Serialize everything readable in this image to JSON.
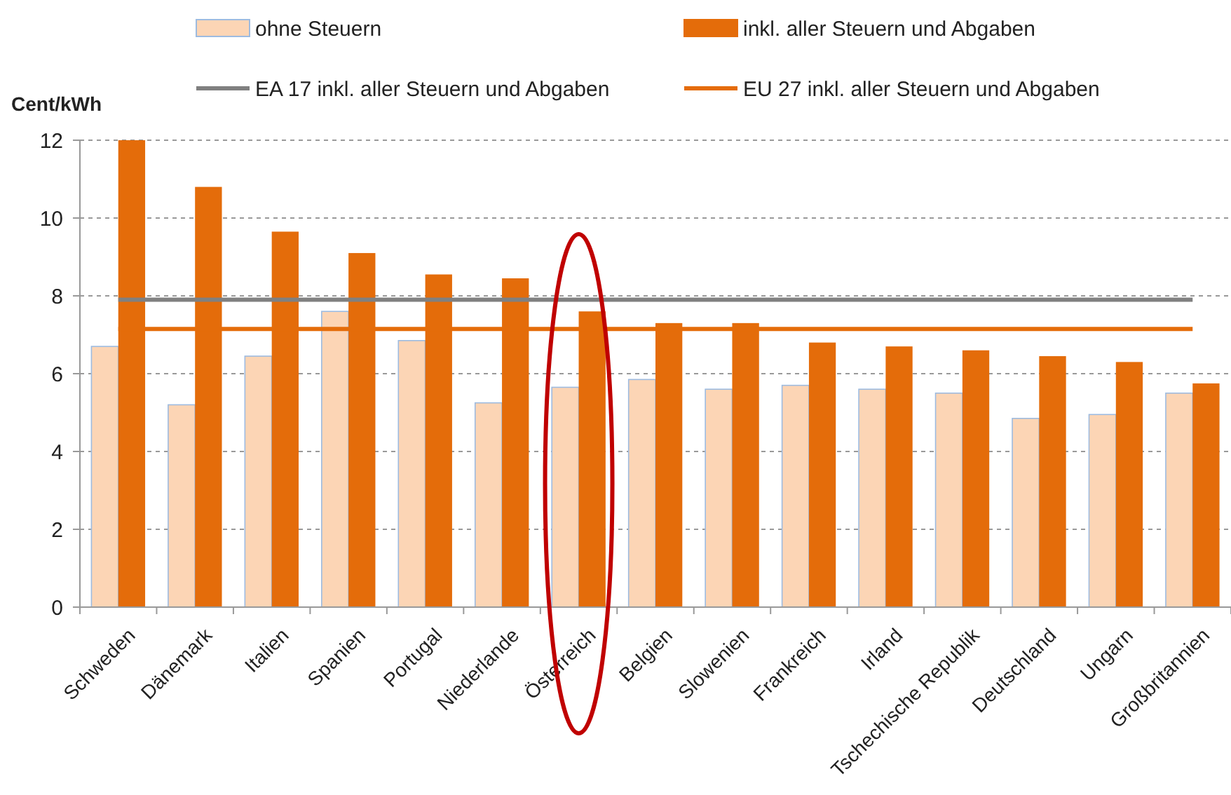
{
  "chart_data": {
    "type": "bar",
    "ylabel": "Cent/kWh",
    "categories": [
      "Schweden",
      "Dänemark",
      "Italien",
      "Spanien",
      "Portugal",
      "Niederlande",
      "Österreich",
      "Belgien",
      "Slowenien",
      "Frankreich",
      "Irland",
      "Tschechische Republik",
      "Deutschland",
      "Ungarn",
      "Großbritannien"
    ],
    "series": [
      {
        "name": "ohne Steuern",
        "color": "#fcd5b5",
        "values": [
          6.7,
          5.2,
          6.45,
          7.6,
          6.85,
          5.25,
          5.65,
          5.85,
          5.6,
          5.7,
          5.6,
          5.5,
          4.85,
          4.95,
          5.5
        ]
      },
      {
        "name": "inkl. aller Steuern und Abgaben",
        "color": "#e46c0a",
        "values": [
          12.0,
          10.8,
          9.65,
          9.1,
          8.55,
          8.45,
          7.6,
          7.3,
          7.3,
          6.8,
          6.7,
          6.6,
          6.45,
          6.3,
          5.75
        ]
      }
    ],
    "ref_lines": [
      {
        "axis": "y",
        "value": 7.9,
        "label": "EA 17 inkl. aller Steuern und Abgaben",
        "color": "#808080"
      },
      {
        "axis": "y",
        "value": 7.15,
        "label": "EU 27 inkl. aller Steuern und Abgaben",
        "color": "#e46c0a"
      }
    ],
    "ylim": [
      0,
      12
    ],
    "yticks": [
      0,
      2,
      4,
      6,
      8,
      10,
      12
    ],
    "grid": "y",
    "legend": "top"
  }
}
